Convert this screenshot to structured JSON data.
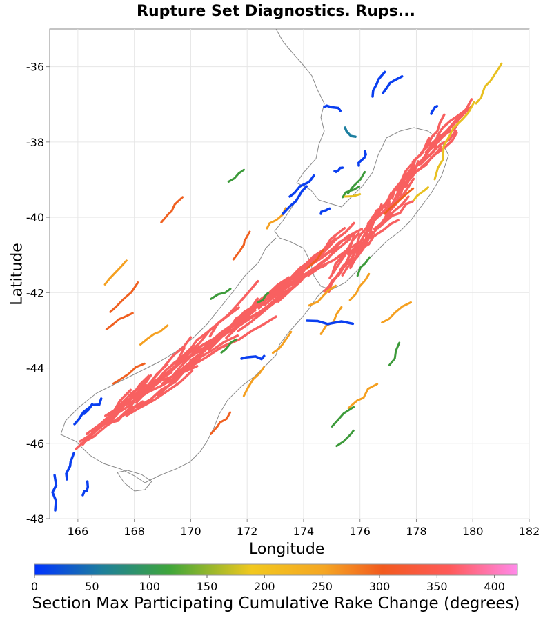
{
  "title": "Rupture Set Diagnostics. Rups...",
  "xlabel": "Longitude",
  "ylabel": "Latitude",
  "x_ticks": [
    "166",
    "168",
    "170",
    "172",
    "174",
    "176",
    "178",
    "180",
    "182"
  ],
  "y_ticks": [
    "-36",
    "-38",
    "-40",
    "-42",
    "-44",
    "-46",
    "-48"
  ],
  "x_range": [
    165,
    182
  ],
  "y_range": [
    -48,
    -35
  ],
  "colorbar": {
    "label": "Section Max Participating Cumulative Rake Change (degrees)",
    "ticks": [
      "0",
      "50",
      "100",
      "150",
      "200",
      "250",
      "300",
      "350",
      "400"
    ],
    "range": [
      0,
      420
    ],
    "stops": [
      "#0033ff",
      "#1e7f9b",
      "#3fa63a",
      "#f2c81e",
      "#f5a623",
      "#f25a1e",
      "#ff5a5a",
      "#ff8aea"
    ]
  },
  "legend_colors": {
    "low": "#0a3ff0",
    "teal": "#1d7fa0",
    "green": "#3c9a3a",
    "yellow": "#e8c020",
    "orange": "#f5a020",
    "redorange": "#f06020",
    "red": "#f86060"
  }
}
